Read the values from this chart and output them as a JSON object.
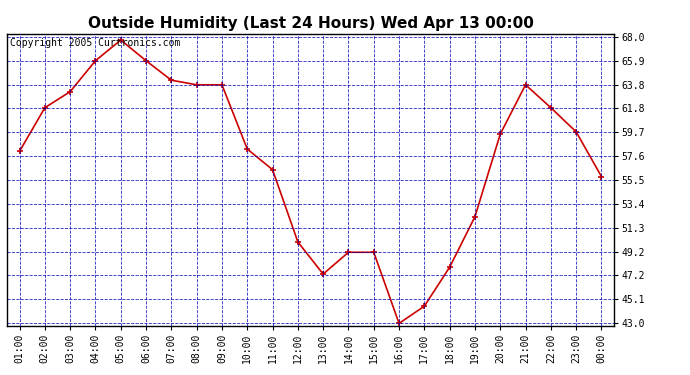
{
  "title": "Outside Humidity (Last 24 Hours) Wed Apr 13 00:00",
  "copyright": "Copyright 2005 Curtronics.com",
  "x_labels": [
    "01:00",
    "02:00",
    "03:00",
    "04:00",
    "05:00",
    "06:00",
    "07:00",
    "08:00",
    "09:00",
    "10:00",
    "11:00",
    "12:00",
    "13:00",
    "14:00",
    "15:00",
    "16:00",
    "17:00",
    "18:00",
    "19:00",
    "20:00",
    "21:00",
    "22:00",
    "23:00",
    "00:00"
  ],
  "y_values": [
    58.0,
    61.8,
    63.2,
    65.9,
    67.7,
    65.9,
    64.2,
    63.8,
    63.8,
    58.2,
    56.4,
    50.1,
    47.3,
    49.2,
    49.2,
    43.0,
    44.5,
    47.9,
    52.3,
    59.5,
    63.8,
    61.8,
    59.7,
    55.8
  ],
  "line_color": "#cc0000",
  "bg_color": "#ffffff",
  "grid_color": "#0000bb",
  "border_color": "#000000",
  "title_color": "#000000",
  "ytick_labels": [
    68.0,
    65.9,
    63.8,
    61.8,
    59.7,
    57.6,
    55.5,
    53.4,
    51.3,
    49.2,
    47.2,
    45.1,
    43.0
  ],
  "ylim_min": 43.0,
  "ylim_max": 68.0,
  "fig_bg": "#ffffff",
  "title_fontsize": 11,
  "tick_fontsize": 7,
  "copyright_fontsize": 7
}
